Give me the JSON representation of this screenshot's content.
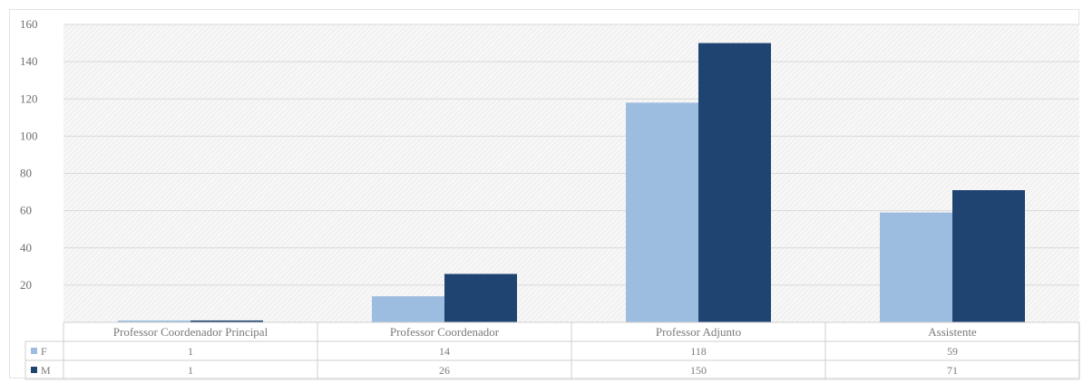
{
  "chart_data": {
    "type": "bar",
    "categories": [
      "Professor Coordenador Principal",
      "Professor Coordenador",
      "Professor Adjunto",
      "Assistente"
    ],
    "series": [
      {
        "name": "F",
        "values": [
          1,
          14,
          118,
          59
        ],
        "color": "#9dbde0"
      },
      {
        "name": "M",
        "values": [
          1,
          26,
          150,
          71
        ],
        "color": "#1f4472"
      }
    ],
    "yticks": [
      20,
      40,
      60,
      80,
      100,
      120,
      140,
      160
    ],
    "ylim": [
      0,
      160
    ],
    "grid": true,
    "legend": "data-table"
  }
}
